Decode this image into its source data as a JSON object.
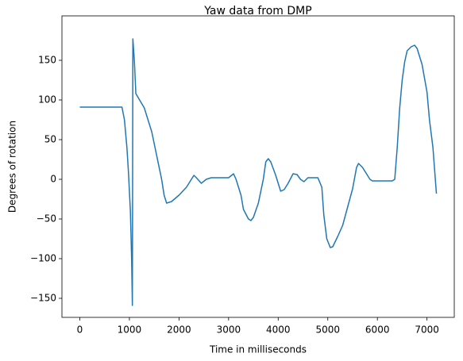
{
  "chart_data": {
    "type": "line",
    "title": "Yaw data from DMP",
    "x_label": "Time in milliseconds",
    "y_label": "Degrees of rotation",
    "xlim": [
      -360,
      7550
    ],
    "ylim": [
      -174,
      206
    ],
    "xticks": [
      0,
      1000,
      2000,
      3000,
      4000,
      5000,
      6000,
      7000
    ],
    "yticks": [
      {
        "value": -150,
        "label": "−150"
      },
      {
        "value": -100,
        "label": "−100"
      },
      {
        "value": -50,
        "label": "−50"
      },
      0,
      50,
      100,
      150
    ],
    "series": [
      {
        "color": "#1f77b4",
        "x": [
          0,
          850,
          900,
          950,
          980,
          1020,
          1045,
          1060,
          1070,
          1100,
          1130,
          1300,
          1450,
          1550,
          1650,
          1700,
          1750,
          1850,
          2000,
          2150,
          2250,
          2300,
          2350,
          2450,
          2550,
          2650,
          3000,
          3100,
          3150,
          3250,
          3300,
          3400,
          3450,
          3500,
          3600,
          3700,
          3750,
          3800,
          3850,
          3950,
          4050,
          4120,
          4200,
          4300,
          4380,
          4450,
          4520,
          4600,
          4800,
          4880,
          4920,
          4980,
          5050,
          5100,
          5200,
          5300,
          5400,
          5500,
          5580,
          5620,
          5700,
          5800,
          5850,
          5900,
          6300,
          6350,
          6400,
          6450,
          6500,
          6550,
          6600,
          6680,
          6750,
          6800,
          6900,
          7000,
          7050,
          7120,
          7190
        ],
        "values": [
          91,
          91,
          75,
          40,
          10,
          -40,
          -100,
          -159,
          177,
          150,
          108,
          90,
          60,
          30,
          0,
          -20,
          -30,
          -28,
          -20,
          -10,
          0,
          5,
          2,
          -5,
          0,
          2,
          2,
          7,
          0,
          -20,
          -38,
          -50,
          -52,
          -48,
          -30,
          0,
          22,
          26,
          22,
          5,
          -15,
          -13,
          -5,
          7,
          6,
          0,
          -3,
          2,
          2,
          -10,
          -45,
          -75,
          -86,
          -85,
          -72,
          -58,
          -35,
          -12,
          15,
          20,
          15,
          5,
          0,
          -2,
          -2,
          0,
          40,
          90,
          125,
          148,
          162,
          167,
          169,
          165,
          145,
          110,
          75,
          40,
          -18
        ]
      }
    ]
  }
}
